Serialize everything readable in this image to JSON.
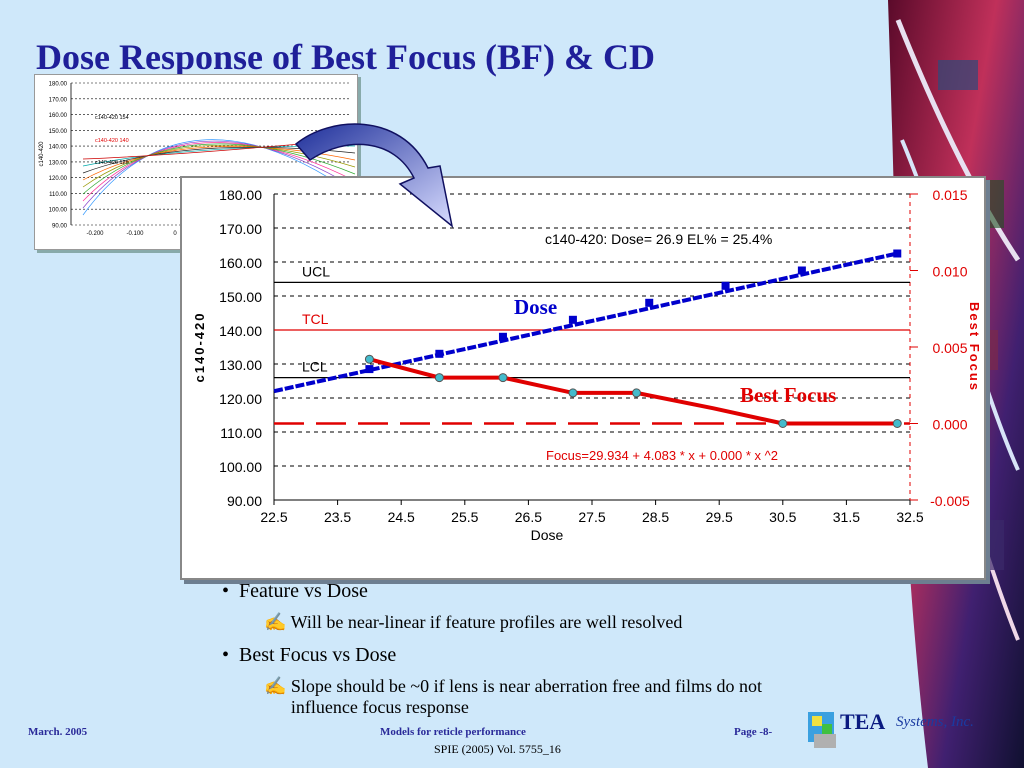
{
  "slide": {
    "title": "Dose Response of Best Focus (BF) & CD",
    "bullets": [
      {
        "text": "Feature vs Dose",
        "sub": "Will be near-linear if feature profiles are well resolved"
      },
      {
        "text": "Best Focus vs Dose",
        "sub": "Slope should be ~0 if lens is near aberration free and films do not influence focus response"
      }
    ],
    "footer_left": "March. 2005",
    "footer_center": "Models for reticle performance",
    "footer_page": "Page -8-",
    "footer_citation": "SPIE (2005) Vol. 5755_16",
    "logo_text": "TEA",
    "logo_suffix": "Systems, Inc.",
    "colors": {
      "title": "#1f1f99",
      "background": "#cfe8fa",
      "dose": "#0000cc",
      "focus": "#e00000"
    }
  },
  "chart_data": [
    {
      "type": "line",
      "ylabel": "c140-420",
      "yticks": [
        "180.00",
        "170.00",
        "160.00",
        "150.00",
        "140.00",
        "130.00",
        "120.00",
        "110.00",
        "100.00",
        "90.00"
      ],
      "xticks": [
        "-0.200",
        "-0.100",
        "0"
      ],
      "annotations": [
        "c140-420 154",
        "c140-420 140",
        "c140-420 126"
      ]
    },
    {
      "type": "line",
      "xlabel": "Dose",
      "ylabel": "c140-420",
      "y2label": "Best Focus",
      "xlim": [
        22.5,
        32.5
      ],
      "ylim": [
        90,
        180
      ],
      "y2lim": [
        -0.005,
        0.015
      ],
      "xticks": [
        "22.5",
        "23.5",
        "24.5",
        "25.5",
        "26.5",
        "27.5",
        "28.5",
        "29.5",
        "30.5",
        "31.5",
        "32.5"
      ],
      "yticks": [
        "180.00",
        "170.00",
        "160.00",
        "150.00",
        "140.00",
        "130.00",
        "120.00",
        "110.00",
        "100.00",
        "90.00"
      ],
      "y2ticks": [
        "0.015",
        "0.010",
        "0.005",
        "0.000",
        "-0.005"
      ],
      "grid": true,
      "control_lines": [
        {
          "name": "UCL",
          "value": 154
        },
        {
          "name": "TCL",
          "value": 140
        },
        {
          "name": "LCL",
          "value": 126
        }
      ],
      "annotations": {
        "dose_fit": "c140-420: Dose= 26.9 EL% = 25.4%",
        "focus_fit": "Focus=29.934 + 4.083 * x + 0.000 * x ^2",
        "dose_label": "Dose",
        "focus_label": "Best Focus"
      },
      "series": [
        {
          "name": "Dose",
          "axis": "left",
          "x": [
            22.5,
            32.3
          ],
          "y": [
            122,
            162.5
          ],
          "points_x": [
            24.0,
            25.1,
            26.1,
            27.2,
            28.4,
            29.6,
            30.8,
            32.3
          ],
          "points_y": [
            128.5,
            133.0,
            138.0,
            143.0,
            148.0,
            153.0,
            157.5,
            162.5
          ]
        },
        {
          "name": "Best Focus",
          "axis": "right",
          "x": [
            24.0,
            25.1,
            26.1,
            27.2,
            28.2,
            29.4,
            30.5,
            31.6,
            32.3
          ],
          "y": [
            0.0042,
            0.003,
            0.003,
            0.002,
            0.002,
            0.001,
            0.0,
            0.0,
            0.0
          ]
        },
        {
          "name": "Focus baseline",
          "axis": "right",
          "value": 0.0
        }
      ]
    }
  ]
}
